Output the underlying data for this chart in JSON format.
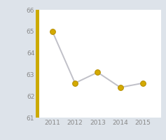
{
  "x": [
    2011,
    2012,
    2013,
    2014,
    2015
  ],
  "y": [
    65.0,
    62.6,
    63.1,
    62.4,
    62.6
  ],
  "ylim": [
    61,
    66
  ],
  "yticks": [
    61,
    62,
    63,
    64,
    65,
    66
  ],
  "xticks": [
    2011,
    2012,
    2013,
    2014,
    2015
  ],
  "xlim": [
    2010.3,
    2015.8
  ],
  "line_color": "#c0c0c8",
  "marker_face_color": "#d4aa00",
  "marker_edge_color": "#b89000",
  "marker_size": 5.5,
  "outer_bg_color": "#dde3ea",
  "plot_bg_color": "#ffffff",
  "bar_color": "#ccaa00",
  "tick_fontsize": 6.5,
  "tick_color": "#888888",
  "line_width": 1.4
}
